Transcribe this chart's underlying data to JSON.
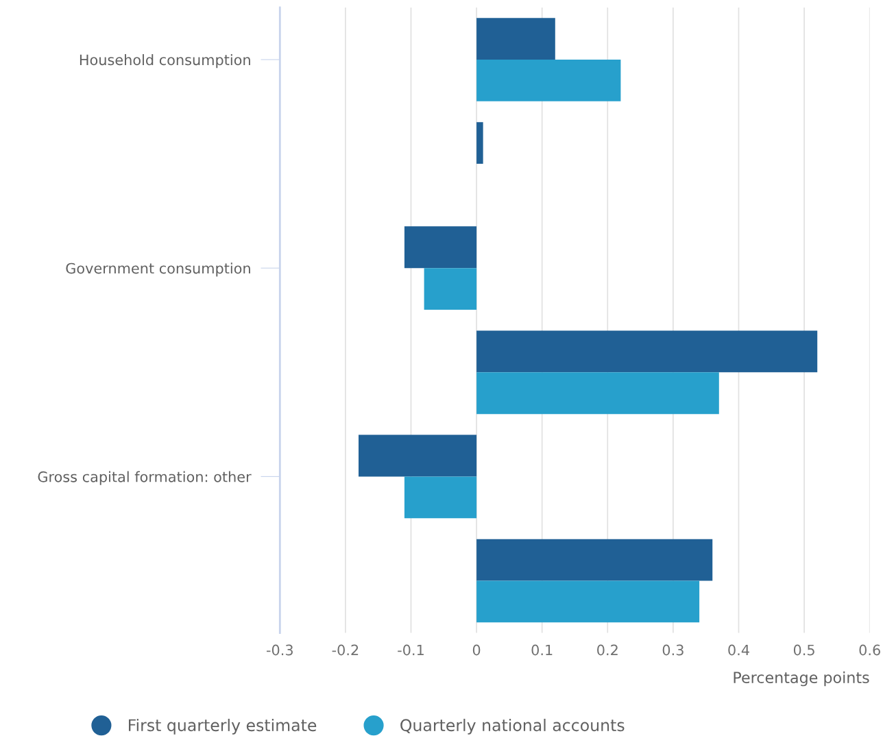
{
  "chart_data": {
    "type": "bar",
    "orientation": "horizontal",
    "xlabel": "Percentage points",
    "categories": [
      "Household consumption",
      null,
      "Government consumption",
      null,
      "Gross capital formation: other",
      null
    ],
    "series": [
      {
        "name": "First quarterly estimate",
        "color": "#206095",
        "values": [
          0.12,
          0.01,
          -0.11,
          0.52,
          -0.18,
          0.36
        ]
      },
      {
        "name": "Quarterly national accounts",
        "color": "#27a0cc",
        "values": [
          0.22,
          null,
          -0.08,
          0.37,
          -0.11,
          0.34
        ]
      }
    ],
    "xlim": [
      -0.3,
      0.6
    ],
    "xticks": [
      -0.3,
      -0.2,
      -0.1,
      0,
      0.1,
      0.2,
      0.3,
      0.4,
      0.5,
      0.6
    ],
    "grid": "x",
    "legend": "bottom",
    "marker": "circle"
  }
}
